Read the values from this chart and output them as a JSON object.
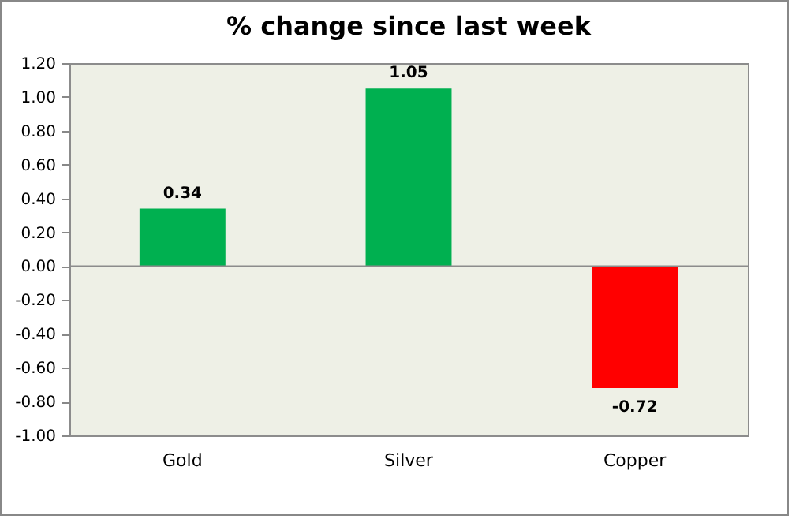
{
  "chart_data": {
    "type": "bar",
    "title": "% change since last week",
    "categories": [
      "Gold",
      "Silver",
      "Copper"
    ],
    "values": [
      0.34,
      1.05,
      -0.72
    ],
    "colors": [
      "#00b050",
      "#00b050",
      "#ff0000"
    ],
    "ylim": [
      -1.0,
      1.2
    ],
    "yticks": [
      {
        "value": -1.0,
        "label": "-1.00"
      },
      {
        "value": -0.8,
        "label": "-0.80"
      },
      {
        "value": -0.6,
        "label": "-0.60"
      },
      {
        "value": -0.4,
        "label": "-0.40"
      },
      {
        "value": -0.2,
        "label": "-0.20"
      },
      {
        "value": 0,
        "label": "0.00"
      },
      {
        "value": 0.2,
        "label": "0.20"
      },
      {
        "value": 0.4,
        "label": "0.40"
      },
      {
        "value": 0.6,
        "label": "0.60"
      },
      {
        "value": 0.8,
        "label": "0.80"
      },
      {
        "value": 1.0,
        "label": "1.00"
      },
      {
        "value": 1.2,
        "label": "1.20"
      }
    ],
    "ref_lines": [
      {
        "axis": "y",
        "value": 0,
        "color": "#8c8c8c"
      }
    ],
    "data_labels": true,
    "grid": false,
    "legend": false
  }
}
